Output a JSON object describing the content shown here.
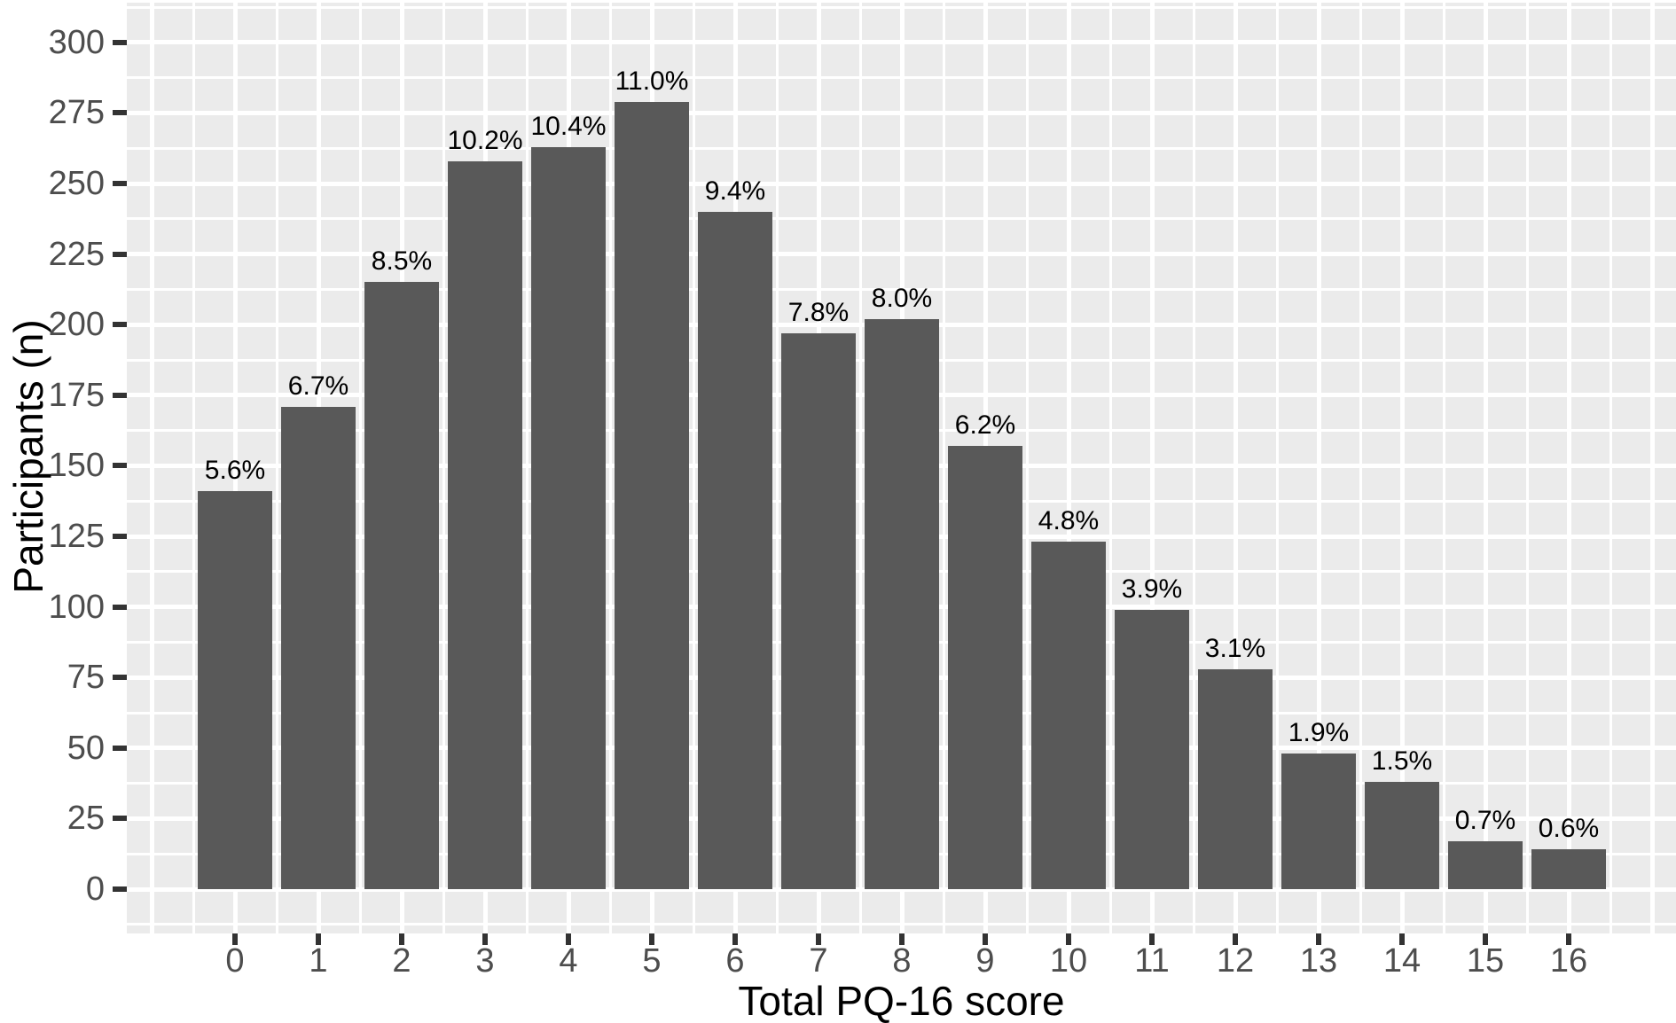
{
  "chart_data": {
    "type": "bar",
    "title": "",
    "xlabel": "Total PQ-16 score",
    "ylabel": "Participants (n)",
    "categories": [
      "0",
      "1",
      "2",
      "3",
      "4",
      "5",
      "6",
      "7",
      "8",
      "9",
      "10",
      "11",
      "12",
      "13",
      "14",
      "15",
      "16"
    ],
    "values": [
      141,
      171,
      215,
      258,
      263,
      279,
      240,
      197,
      202,
      157,
      123,
      99,
      78,
      48,
      38,
      17,
      14
    ],
    "bar_labels": [
      "5.6%",
      "6.7%",
      "8.5%",
      "10.2%",
      "10.4%",
      "11.0%",
      "9.4%",
      "7.8%",
      "8.0%",
      "6.2%",
      "4.8%",
      "3.9%",
      "3.1%",
      "1.9%",
      "1.5%",
      "0.7%",
      "0.6%"
    ],
    "y_ticks": [
      0,
      25,
      50,
      75,
      100,
      125,
      150,
      175,
      200,
      225,
      250,
      275,
      300
    ],
    "ylim": [
      0,
      300
    ],
    "grid": true,
    "legend": "none",
    "colors": {
      "bar_fill": "#595959",
      "panel_background": "#EBEBEB",
      "gridline": "#FFFFFF",
      "tick_text": "#4D4D4D",
      "axis_title_text": "#000000",
      "bar_label_text": "#000000",
      "tick_mark": "#333333"
    }
  }
}
